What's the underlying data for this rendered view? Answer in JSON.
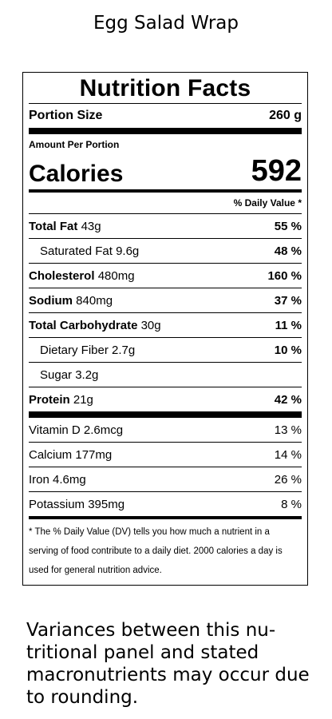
{
  "title": "Egg Salad Wrap",
  "label": {
    "heading": "Nutrition Facts",
    "portion_label": "Portion Size",
    "portion_value": "260 g",
    "amount_per_portion": "Amount Per Portion",
    "calories_label": "Calories",
    "calories_value": "592",
    "dv_header": "% Daily Value *",
    "nutrients": [
      {
        "name": "Total Fat",
        "amount": "43g",
        "dv": "55 %"
      },
      {
        "name": "Saturated Fat",
        "amount": "9.6g",
        "dv": "48 %"
      },
      {
        "name": "Cholesterol",
        "amount": "480mg",
        "dv": "160 %"
      },
      {
        "name": "Sodium",
        "amount": "840mg",
        "dv": "37 %"
      },
      {
        "name": "Total Carbohydrate",
        "amount": "30g",
        "dv": "11 %"
      },
      {
        "name": "Dietary Fiber",
        "amount": "2.7g",
        "dv": "10 %"
      },
      {
        "name": "Sugar",
        "amount": "3.2g",
        "dv": ""
      },
      {
        "name": "Protein",
        "amount": "21g",
        "dv": "42 %"
      }
    ],
    "vitamins": [
      {
        "name": "Vitamin D",
        "amount": "2.6mcg",
        "dv": "13 %"
      },
      {
        "name": "Calcium",
        "amount": "177mg",
        "dv": "14 %"
      },
      {
        "name": "Iron",
        "amount": "4.6mg",
        "dv": "26 %"
      },
      {
        "name": "Potassium",
        "amount": "395mg",
        "dv": "8 %"
      }
    ],
    "footnote": "* The % Daily Value (DV) tells you how much a nutrient in a serving of food contribute to a daily diet. 2000 calories a day is used for general nutrition advice."
  },
  "note": "Variances between this nu-tritional panel and stated macronutrients may occur due to rounding."
}
